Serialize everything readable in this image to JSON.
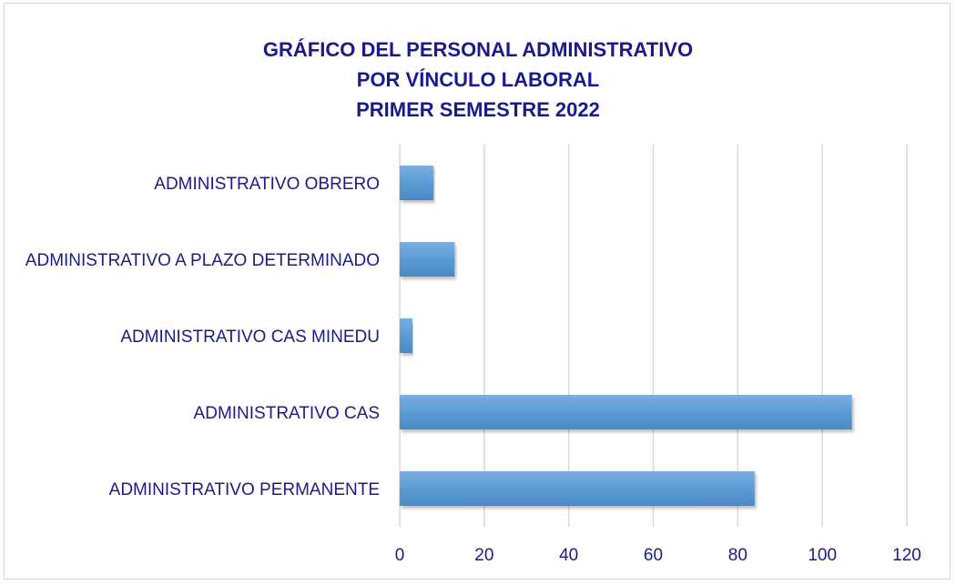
{
  "chart_data": {
    "type": "bar",
    "orientation": "horizontal",
    "title_lines": [
      "GRÁFICO DEL PERSONAL ADMINISTRATIVO",
      "POR VÍNCULO LABORAL",
      "PRIMER SEMESTRE 2022"
    ],
    "categories": [
      "ADMINISTRATIVO OBRERO",
      "ADMINISTRATIVO A PLAZO DETERMINADO",
      "ADMINISTRATIVO CAS MINEDU",
      "ADMINISTRATIVO CAS",
      "ADMINISTRATIVO PERMANENTE"
    ],
    "values": [
      8,
      13,
      3,
      107,
      84
    ],
    "xlim": [
      0,
      120
    ],
    "xticks": [
      "0",
      "20",
      "40",
      "60",
      "80",
      "100",
      "120"
    ],
    "xlabel": "",
    "ylabel": "",
    "grid": "vertical",
    "legend": "none",
    "bar_color": "#5b9bd5",
    "text_color": "#1a1a8c",
    "grid_color": "#d9d9d9"
  }
}
